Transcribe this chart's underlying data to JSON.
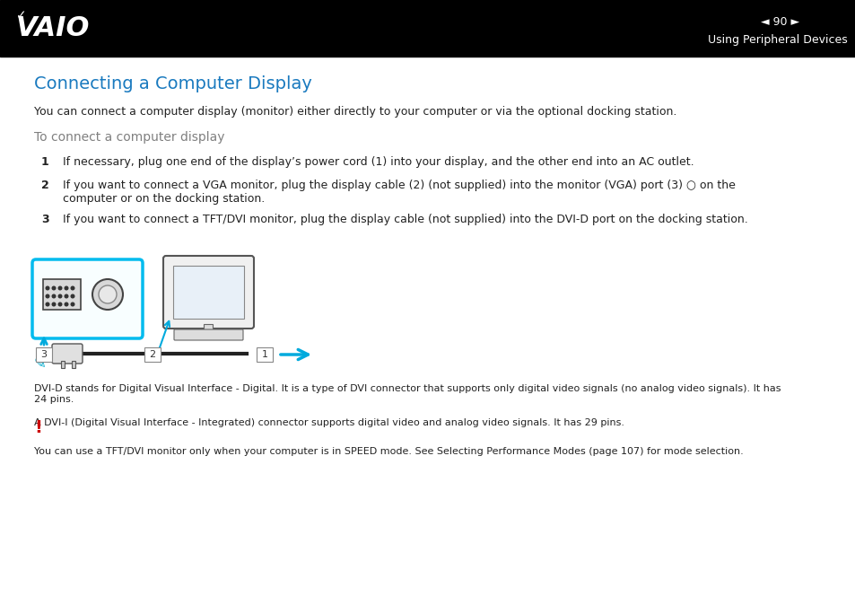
{
  "bg_color": "#ffffff",
  "header_bg": "#000000",
  "header_text_color": "#ffffff",
  "header_page_num": "90",
  "header_section": "Using Peripheral Devices",
  "title": "Connecting a Computer Display",
  "title_color": "#1a7abf",
  "title_fontsize": 14,
  "subtitle_color": "#808080",
  "subtitle_text": "To connect a computer display",
  "subtitle_fontsize": 10,
  "body_text_color": "#222222",
  "body_fontsize": 9,
  "note_fontsize": 8,
  "intro_text": "You can connect a computer display (monitor) either directly to your computer or via the optional docking station.",
  "step1_text": "If necessary, plug one end of the display’s power cord (1) into your display, and the other end into an AC outlet.",
  "step2_text": "If you want to connect a VGA monitor, plug the display cable (2) (not supplied) into the monitor (VGA) port (3) ○ on the\ncomputer or on the docking station.",
  "step3_text_plain": "If you want to connect a TFT/DVI monitor, plug the display cable (not supplied) into the ",
  "step3_bold": "DVI-D",
  "step3_end": " port on the docking station.",
  "note_icon_color": "#00aacc",
  "exclaim_color": "#cc0000",
  "note1_text": "DVI-D stands for Digital Visual Interface - Digital. It is a type of DVI connector that supports only digital video signals (no analog video signals). It has\n24 pins.",
  "note2_text": "A DVI-I (Digital Visual Interface - Integrated) connector supports digital video and analog video signals. It has 29 pins.",
  "warn_text_plain1": "You can use a TFT/DVI monitor only when your computer is in SPEED mode. See ",
  "warn_text_bold": "Selecting Performance Modes",
  "warn_text_link": " (page 107)",
  "warn_text_end": " for mode selection.",
  "cyan_color": "#00aadd",
  "cyan_box_color": "#00bbee"
}
